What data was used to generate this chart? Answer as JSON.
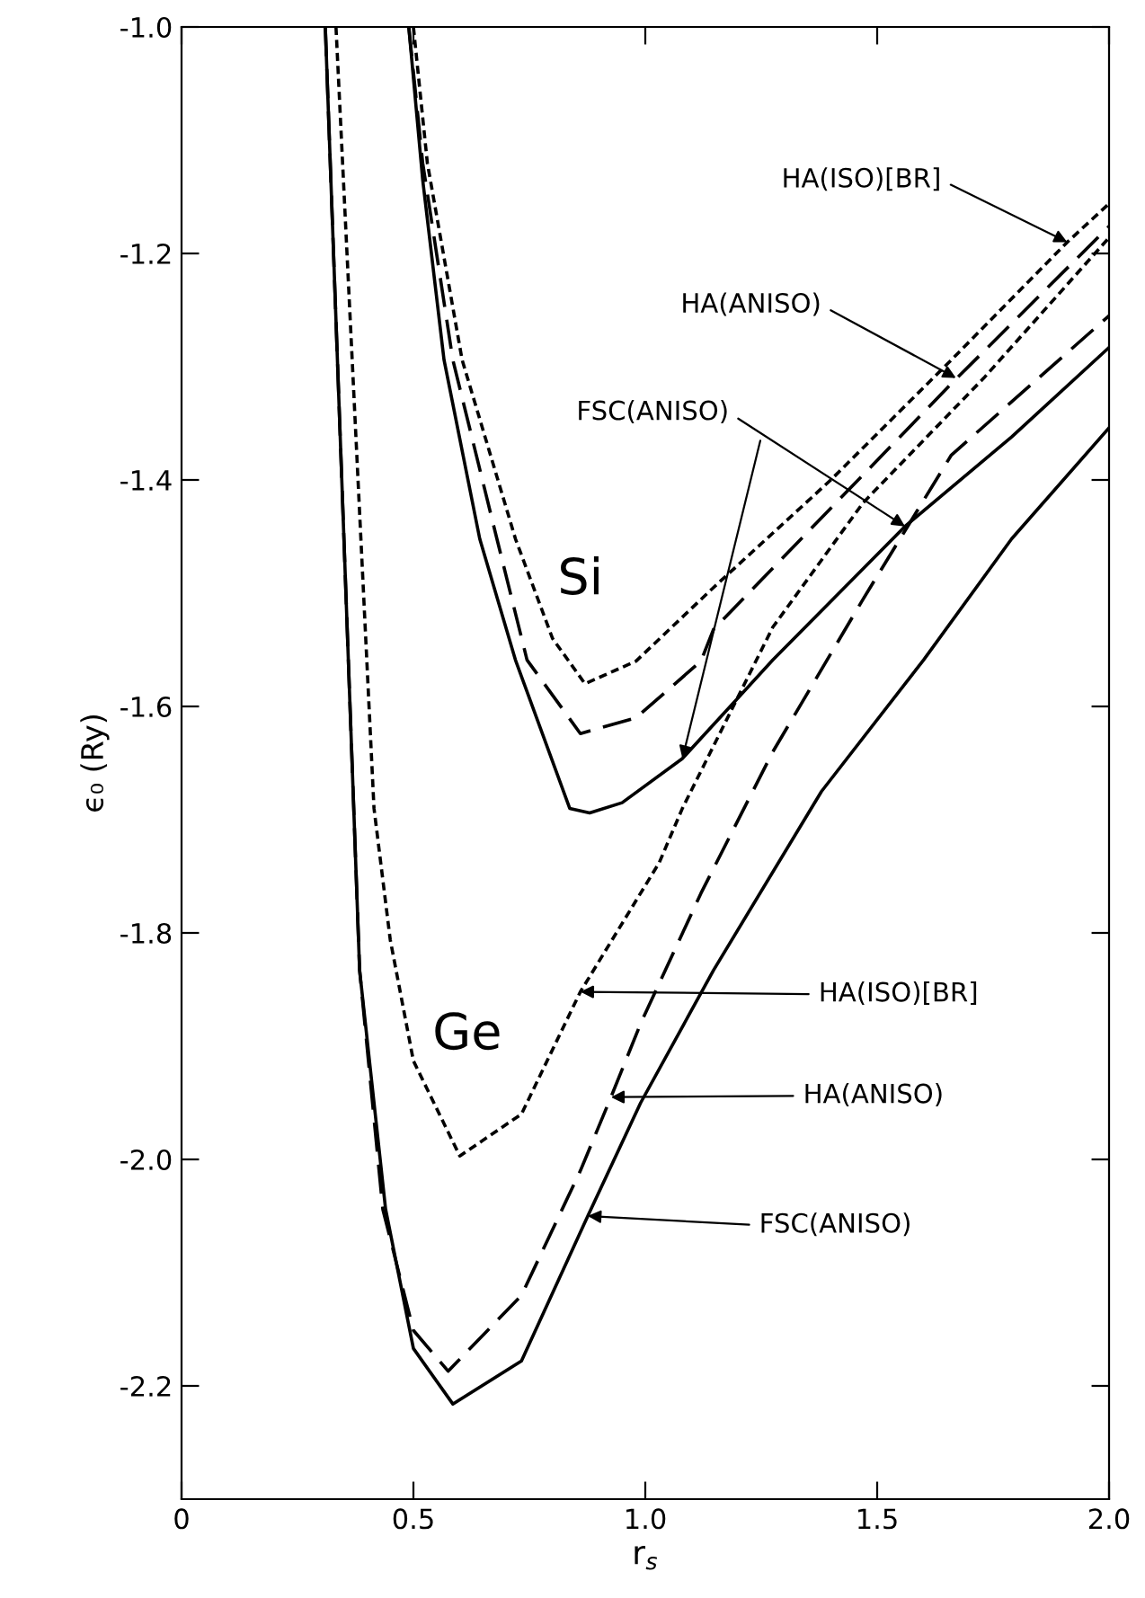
{
  "chart_data": {
    "type": "line",
    "xlabel": "r$_{s}$",
    "ylabel": "ϵ₀ (Ry)",
    "xlim": [
      0,
      2
    ],
    "ylim": [
      -2.3,
      -1.0
    ],
    "xticks": [
      0,
      0.5,
      {
        "value": 1,
        "label": "1.0"
      },
      1.5,
      {
        "value": 2,
        "label": "2.0"
      }
    ],
    "yticks": [
      {
        "value": -2.2,
        "label": "-2.2"
      },
      {
        "value": -2.0,
        "label": "-2.0"
      },
      {
        "value": -1.8,
        "label": "-1.8"
      },
      {
        "value": -1.6,
        "label": "-1.6"
      },
      {
        "value": -1.4,
        "label": "-1.4"
      },
      {
        "value": -1.2,
        "label": "-1.2"
      },
      {
        "value": -1.0,
        "label": "-1.0"
      }
    ],
    "grid": false,
    "legend": false,
    "marker": "none",
    "series": [
      {
        "color": "#000000",
        "line_style": "solid",
        "x": [
          0.49,
          0.52,
          0.566,
          0.643,
          0.72,
          0.837,
          0.88,
          0.95,
          1.08,
          1.275,
          1.56,
          1.79,
          2.0
        ],
        "values": [
          -1.0,
          -1.135,
          -1.294,
          -1.452,
          -1.559,
          -1.69,
          -1.694,
          -1.685,
          -1.646,
          -1.559,
          -1.441,
          -1.362,
          -1.283
        ]
      },
      {
        "color": "#000000",
        "line_style": "dashed",
        "x": [
          0.49,
          0.52,
          0.585,
          0.68,
          0.745,
          0.86,
          0.98,
          1.12,
          1.147,
          1.4,
          1.66,
          2.0
        ],
        "values": [
          -1.0,
          -1.12,
          -1.294,
          -1.452,
          -1.559,
          -1.624,
          -1.61,
          -1.56,
          -1.532,
          -1.425,
          -1.315,
          -1.176
        ]
      },
      {
        "color": "#000000",
        "line_style": "dotted",
        "x": [
          0.5,
          0.53,
          0.605,
          0.72,
          0.8,
          0.87,
          0.98,
          1.147,
          1.4,
          1.66,
          1.91,
          2.0
        ],
        "values": [
          -1.0,
          -1.12,
          -1.294,
          -1.452,
          -1.54,
          -1.58,
          -1.56,
          -1.495,
          -1.4,
          -1.294,
          -1.19,
          -1.156
        ]
      },
      {
        "color": "#000000",
        "line_style": "solid",
        "x": [
          0.31,
          0.384,
          0.44,
          0.5,
          0.585,
          0.733,
          0.876,
          0.99,
          1.147,
          1.38,
          1.6,
          1.79,
          2.0
        ],
        "values": [
          -1.0,
          -1.833,
          -2.044,
          -2.167,
          -2.216,
          -2.178,
          -2.05,
          -1.95,
          -1.833,
          -1.675,
          -1.559,
          -1.452,
          -1.354
        ]
      },
      {
        "color": "#000000",
        "line_style": "dashed",
        "x": [
          0.31,
          0.384,
          0.434,
          0.5,
          0.575,
          0.733,
          0.86,
          0.926,
          0.99,
          1.12,
          1.275,
          1.47,
          1.66,
          2.0
        ],
        "values": [
          -1.0,
          -1.833,
          -2.044,
          -2.151,
          -2.187,
          -2.12,
          -2.01,
          -1.945,
          -1.88,
          -1.765,
          -1.64,
          -1.505,
          -1.378,
          -1.255
        ]
      },
      {
        "color": "#000000",
        "line_style": "dotted",
        "x": [
          0.333,
          0.415,
          0.45,
          0.5,
          0.6,
          0.733,
          0.86,
          1.03,
          1.08,
          1.275,
          1.47,
          1.73,
          2.0
        ],
        "values": [
          -1.0,
          -1.69,
          -1.806,
          -1.913,
          -1.997,
          -1.96,
          -1.852,
          -1.738,
          -1.69,
          -1.53,
          -1.42,
          -1.31,
          -1.186
        ]
      }
    ],
    "annotations": [
      "Si",
      "Ge",
      {
        "text": "HA(ISO)[BR]",
        "x": 1.91,
        "y": -1.19
      },
      {
        "text": "HA(ANISO)",
        "x": 1.67,
        "y": -1.31
      },
      {
        "text": "FSC(ANISO)",
        "x": 1.56,
        "y": -1.441
      },
      {
        "text": "HA(ISO)[BR]",
        "x": 0.86,
        "y": -1.852
      },
      {
        "text": "HA(ANISO)",
        "x": 0.926,
        "y": -1.945
      },
      {
        "text": "FSC(ANISO)",
        "x": 0.876,
        "y": -2.05
      }
    ]
  }
}
